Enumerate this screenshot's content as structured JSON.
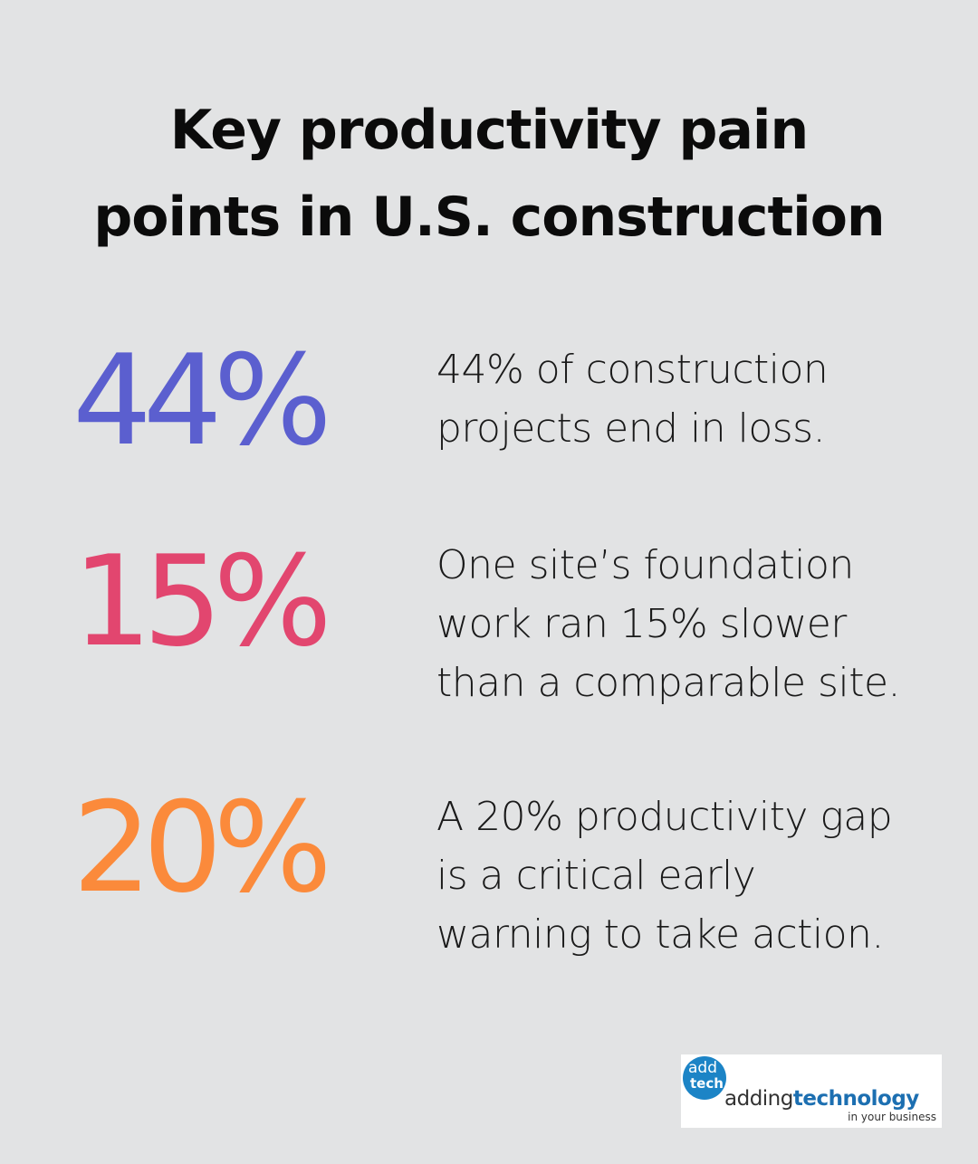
{
  "title": {
    "line1": "Key productivity pain",
    "line2": "points in U.S. construction"
  },
  "stats": [
    {
      "value": "44%",
      "color": "#5b5fcf",
      "lines": [
        "44% of construction",
        "projects end in loss."
      ]
    },
    {
      "value": "15%",
      "color": "#e2466f",
      "lines": [
        "One site’s foundation",
        "work ran 15% slower",
        "than a comparable site."
      ]
    },
    {
      "value": "20%",
      "color": "#fb8a3b",
      "lines": [
        "A 20% productivity gap",
        "is a critical early",
        "warning to take action."
      ]
    }
  ],
  "logo": {
    "badge_top": "add",
    "badge_bottom": "tech",
    "word_light": "adding",
    "word_bold": "technology",
    "tagline": "in your business",
    "brand_color": "#1c84c6"
  }
}
